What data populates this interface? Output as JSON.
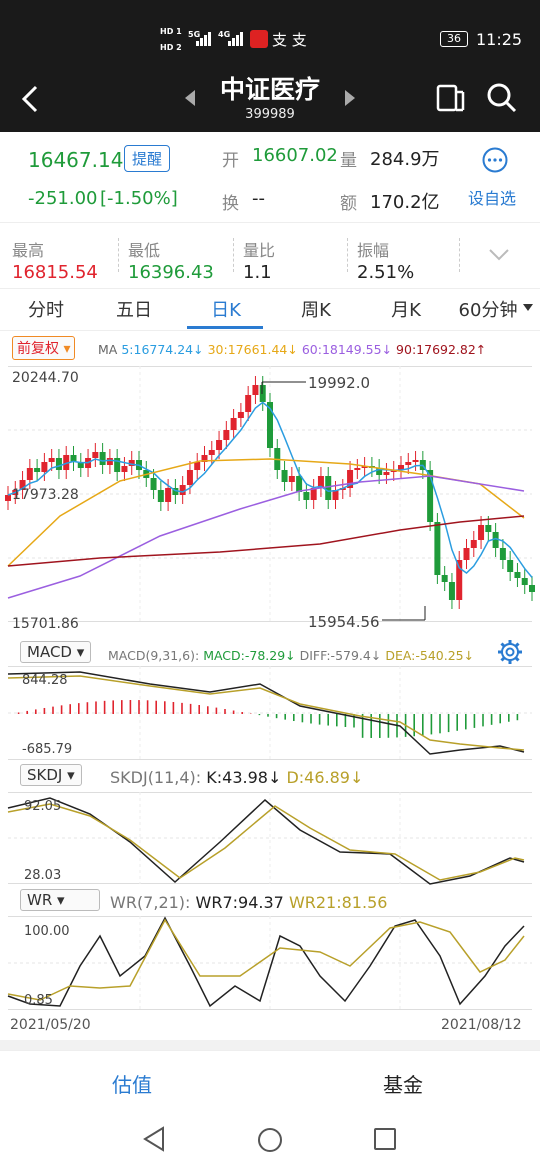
{
  "status": {
    "sim1": "HD 1",
    "sim2": "HD 2",
    "sig1": "5G",
    "sig2": "4G",
    "carrier_chars": "支 支",
    "battery": "36",
    "time": "11:25"
  },
  "nav": {
    "title": "中证医疗",
    "code": "399989"
  },
  "quote": {
    "price": "16467.14",
    "remind_label": "提醒",
    "change": "-251.00",
    "change_pct": "[-1.50%]",
    "open_label": "开",
    "open": "16607.02",
    "volume_label": "量",
    "volume": "284.9万",
    "turnover_label": "换",
    "turnover": "--",
    "amount_label": "额",
    "amount": "170.2亿",
    "add_fav_label": "设自选"
  },
  "stats": [
    {
      "label": "最高",
      "value": "16815.54"
    },
    {
      "label": "最低",
      "value": "16396.43"
    },
    {
      "label": "量比",
      "value": "1.1"
    },
    {
      "label": "振幅",
      "value": "2.51%"
    }
  ],
  "tabs": [
    "分时",
    "五日",
    "日K",
    "周K",
    "月K",
    "60分钟"
  ],
  "active_tab": 2,
  "chart": {
    "adjust_label": "前复权",
    "ma_title": "MA",
    "ma5": "5:16774.24↓",
    "ma30": "30:17661.44↓",
    "ma60": "60:18149.55↓",
    "ma90": "90:17692.82↑",
    "top_label": "20244.70",
    "mid_label": "17973.28",
    "bottom_label": "15701.86",
    "high_annot": "19992.0",
    "low_annot": "15954.56",
    "macd_btn": "MACD",
    "macd_params": "MACD(9,31,6):",
    "macd_val": "MACD:-78.29↓",
    "diff_val": "DIFF:-579.4↓",
    "dea_val": "DEA:-540.25↓",
    "macd_top": "844.28",
    "macd_bottom": "-685.79",
    "skdj_btn": "SKDJ",
    "skdj_params": "SKDJ(11,4):",
    "k_val": "K:43.98↓",
    "d_val": "D:46.89↓",
    "skdj_top": "92.05",
    "skdj_bottom": "28.03",
    "wr_btn": "WR",
    "wr_params": "WR(7,21):",
    "wr7_val": "WR7:94.37",
    "wr21_val": "WR21:81.56",
    "wr_top": "100.00",
    "wr_bottom": "0.85",
    "date_start": "2021/05/20",
    "date_end": "2021/08/12",
    "colors": {
      "ma5": "#2b9de0",
      "ma30": "#e6a817",
      "ma60": "#9b5fe0",
      "ma90": "#a0141e",
      "up": "#e0242e",
      "down": "#1f9b3a"
    }
  },
  "bottom": {
    "valuation": "估值",
    "fund": "基金"
  }
}
